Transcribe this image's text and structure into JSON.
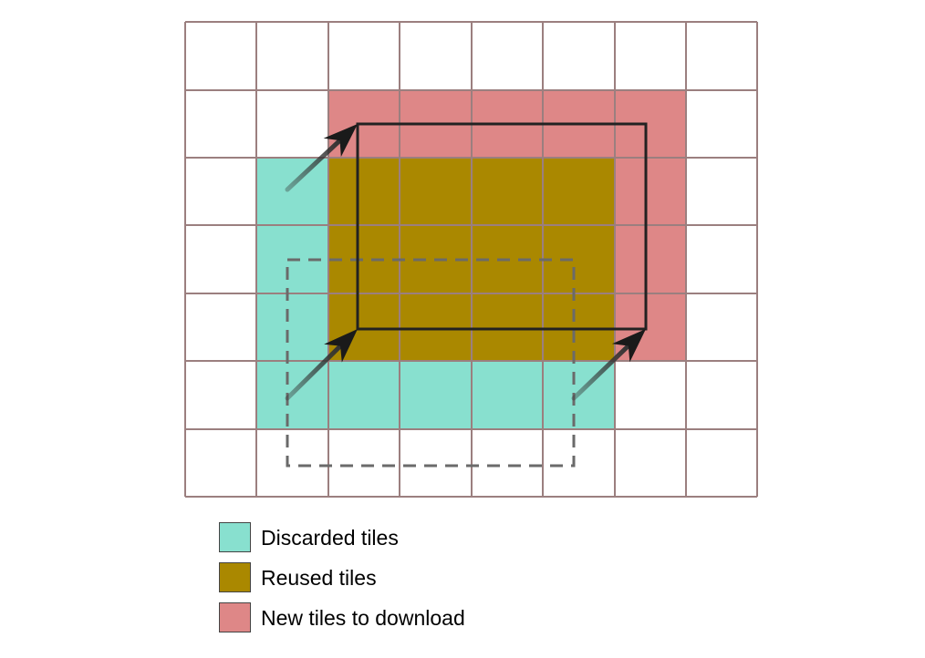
{
  "grid": {
    "columns": 8,
    "rows": 7,
    "line_color": "#9b7f7f"
  },
  "colors": {
    "discarded": "#88e0cf",
    "reused": "#aa8800",
    "new": "#de8787",
    "old_viewport": "#6a6a6a",
    "new_viewport": "#222222",
    "arrow": "#333333"
  },
  "legend": {
    "items": [
      {
        "key": "discarded",
        "label": "Discarded tiles",
        "color": "#88e0cf"
      },
      {
        "key": "reused",
        "label": "Reused tiles",
        "color": "#aa8800"
      },
      {
        "key": "new",
        "label": "New tiles to download",
        "color": "#de8787"
      }
    ]
  }
}
